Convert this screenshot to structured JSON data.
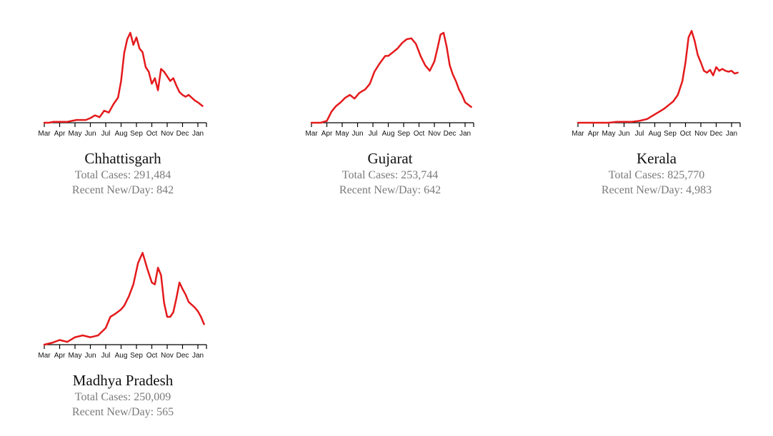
{
  "accent_color": "#e41a1c",
  "chart_data": [
    {
      "type": "line",
      "title": "Chhattisgarh",
      "stats": {
        "total": "Total Cases: 291,484",
        "recent": "Recent New/Day: 842"
      },
      "x_ticks": [
        "Mar",
        "Apr",
        "May",
        "Jun",
        "Jul",
        "Aug",
        "Sep",
        "Oct",
        "Nov",
        "Dec",
        "Jan"
      ],
      "ylim": [
        0,
        1
      ],
      "x": [
        0,
        0.3,
        0.6,
        0.9,
        1.2,
        1.5,
        1.8,
        2.1,
        2.4,
        2.7,
        3,
        3.3,
        3.6,
        3.9,
        4.2,
        4.5,
        4.8,
        5,
        5.2,
        5.4,
        5.6,
        5.8,
        6,
        6.2,
        6.4,
        6.6,
        6.8,
        7,
        7.2,
        7.4,
        7.6,
        7.8,
        8,
        8.2,
        8.4,
        8.6,
        8.8,
        9,
        9.2,
        9.4,
        9.6,
        9.8,
        10,
        10.3
      ],
      "values": [
        0,
        0,
        0.01,
        0.01,
        0.01,
        0.01,
        0.02,
        0.03,
        0.03,
        0.03,
        0.05,
        0.08,
        0.06,
        0.13,
        0.11,
        0.2,
        0.27,
        0.45,
        0.75,
        0.9,
        0.97,
        0.84,
        0.92,
        0.8,
        0.76,
        0.6,
        0.55,
        0.42,
        0.48,
        0.35,
        0.58,
        0.55,
        0.5,
        0.45,
        0.48,
        0.4,
        0.33,
        0.3,
        0.28,
        0.3,
        0.27,
        0.24,
        0.22,
        0.18
      ]
    },
    {
      "type": "line",
      "title": "Gujarat",
      "stats": {
        "total": "Total Cases: 253,744",
        "recent": "Recent New/Day: 642"
      },
      "x_ticks": [
        "Mar",
        "Apr",
        "May",
        "Jun",
        "Jul",
        "Aug",
        "Sep",
        "Oct",
        "Nov",
        "Dec",
        "Jan"
      ],
      "ylim": [
        0,
        1
      ],
      "x": [
        0,
        0.6,
        1,
        1.3,
        1.6,
        1.9,
        2.2,
        2.5,
        2.8,
        3.1,
        3.5,
        3.8,
        4.1,
        4.4,
        4.8,
        5,
        5.3,
        5.6,
        5.9,
        6.2,
        6.5,
        6.8,
        7.1,
        7.4,
        7.7,
        8,
        8.2,
        8.4,
        8.6,
        8.8,
        9,
        9.2,
        9.4,
        9.6,
        9.8,
        10,
        10.4
      ],
      "values": [
        0,
        0,
        0.02,
        0.12,
        0.18,
        0.22,
        0.27,
        0.3,
        0.26,
        0.32,
        0.36,
        0.42,
        0.55,
        0.63,
        0.72,
        0.72,
        0.76,
        0.8,
        0.86,
        0.9,
        0.91,
        0.85,
        0.72,
        0.62,
        0.56,
        0.66,
        0.8,
        0.95,
        0.97,
        0.82,
        0.62,
        0.52,
        0.45,
        0.36,
        0.3,
        0.22,
        0.17
      ]
    },
    {
      "type": "line",
      "title": "Kerala",
      "stats": {
        "total": "Total Cases: 825,770",
        "recent": "Recent New/Day: 4,983"
      },
      "x_ticks": [
        "Mar",
        "Apr",
        "May",
        "Jun",
        "Jul",
        "Aug",
        "Sep",
        "Oct",
        "Nov",
        "Dec",
        "Jan"
      ],
      "ylim": [
        0,
        1
      ],
      "x": [
        0,
        0.5,
        1,
        1.5,
        2,
        2.5,
        3,
        3.5,
        4,
        4.5,
        5,
        5.3,
        5.6,
        5.9,
        6.2,
        6.5,
        6.8,
        7,
        7.2,
        7.4,
        7.6,
        7.8,
        8,
        8.2,
        8.4,
        8.6,
        8.8,
        9,
        9.2,
        9.4,
        9.6,
        9.8,
        10,
        10.2,
        10.4
      ],
      "values": [
        0,
        0,
        0,
        0,
        0,
        0.01,
        0.01,
        0.01,
        0.02,
        0.04,
        0.09,
        0.12,
        0.15,
        0.19,
        0.23,
        0.3,
        0.45,
        0.65,
        0.92,
        0.99,
        0.88,
        0.73,
        0.65,
        0.56,
        0.54,
        0.57,
        0.51,
        0.6,
        0.56,
        0.58,
        0.56,
        0.55,
        0.56,
        0.53,
        0.54
      ]
    },
    {
      "type": "line",
      "title": "Madhya Pradesh",
      "stats": {
        "total": "Total Cases: 250,009",
        "recent": "Recent New/Day: 565"
      },
      "x_ticks": [
        "Mar",
        "Apr",
        "May",
        "Jun",
        "Jul",
        "Aug",
        "Sep",
        "Oct",
        "Nov",
        "Dec",
        "Jan"
      ],
      "ylim": [
        0,
        1
      ],
      "x": [
        0,
        0.5,
        1,
        1.5,
        2,
        2.5,
        3,
        3.5,
        4,
        4.3,
        4.6,
        5,
        5.2,
        5.5,
        5.8,
        6.1,
        6.4,
        6.7,
        7,
        7.2,
        7.4,
        7.6,
        7.8,
        8,
        8.2,
        8.4,
        8.6,
        8.8,
        9,
        9.2,
        9.4,
        9.6,
        9.8,
        10,
        10.2,
        10.4
      ],
      "values": [
        0,
        0.02,
        0.05,
        0.03,
        0.08,
        0.1,
        0.08,
        0.1,
        0.18,
        0.3,
        0.33,
        0.38,
        0.42,
        0.52,
        0.65,
        0.88,
        0.99,
        0.82,
        0.67,
        0.65,
        0.83,
        0.75,
        0.45,
        0.3,
        0.3,
        0.35,
        0.5,
        0.67,
        0.6,
        0.54,
        0.46,
        0.43,
        0.4,
        0.36,
        0.3,
        0.22
      ]
    }
  ]
}
